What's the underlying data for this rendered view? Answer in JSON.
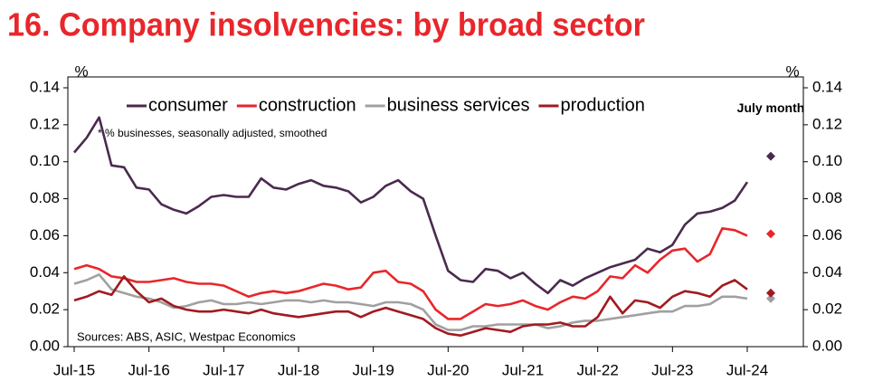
{
  "chart_data": {
    "type": "line",
    "title": "16. Company insolvencies: by broad sector",
    "ylabel": "%",
    "y2label": "%",
    "note": "* % businesses, seasonally adjusted, smoothed",
    "source": "Sources: ABS, ASIC, Westpac Economics",
    "annotation": "July month",
    "categories": [
      "Jul-15",
      null,
      null,
      null,
      null,
      null,
      "Jul-16",
      null,
      null,
      null,
      null,
      null,
      "Jul-17",
      null,
      null,
      null,
      null,
      null,
      "Jul-18",
      null,
      null,
      null,
      null,
      null,
      "Jul-19",
      null,
      null,
      null,
      null,
      null,
      "Jul-20",
      null,
      null,
      null,
      null,
      null,
      "Jul-21",
      null,
      null,
      null,
      null,
      null,
      "Jul-22",
      null,
      null,
      null,
      null,
      null,
      "Jul-23",
      null,
      null,
      null,
      null,
      null,
      "Jul-24"
    ],
    "ylim": [
      0,
      0.14
    ],
    "yticks": [
      {
        "value": 0,
        "label": "0.00"
      },
      {
        "value": 0.02,
        "label": "0.02"
      },
      {
        "value": 0.04,
        "label": "0.04"
      },
      {
        "value": 0.06,
        "label": "0.06"
      },
      {
        "value": 0.08,
        "label": "0.08"
      },
      {
        "value": 0.1,
        "label": "0.10"
      },
      {
        "value": 0.12,
        "label": "0.12"
      },
      {
        "value": 0.14,
        "label": "0.14"
      }
    ],
    "y2lim": [
      0,
      0.14
    ],
    "y2ticks": [
      {
        "value": 0,
        "label": "0.00"
      },
      {
        "value": 0.02,
        "label": "0.02"
      },
      {
        "value": 0.04,
        "label": "0.04"
      },
      {
        "value": 0.06,
        "label": "0.06"
      },
      {
        "value": 0.08,
        "label": "0.08"
      },
      {
        "value": 0.1,
        "label": "0.10"
      },
      {
        "value": 0.12,
        "label": "0.12"
      },
      {
        "value": 0.14,
        "label": "0.14"
      }
    ],
    "grid": false,
    "legend": "top",
    "series": [
      {
        "name": "consumer",
        "color": "#4b2a4f",
        "july_month": 0.103,
        "values": [
          0.105,
          0.113,
          0.124,
          0.098,
          0.097,
          0.086,
          0.085,
          0.077,
          0.074,
          0.072,
          0.076,
          0.081,
          0.082,
          0.081,
          0.081,
          0.091,
          0.086,
          0.085,
          0.088,
          0.09,
          0.087,
          0.086,
          0.084,
          0.078,
          0.081,
          0.087,
          0.09,
          0.084,
          0.08,
          0.06,
          0.041,
          0.036,
          0.035,
          0.042,
          0.041,
          0.037,
          0.04,
          0.034,
          0.029,
          0.036,
          0.033,
          0.037,
          0.04,
          0.043,
          0.045,
          0.047,
          0.053,
          0.051,
          0.055,
          0.066,
          0.072,
          0.073,
          0.075,
          0.079,
          0.089
        ]
      },
      {
        "name": "construction",
        "color": "#e8262b",
        "july_month": 0.061,
        "values": [
          0.042,
          0.044,
          0.042,
          0.038,
          0.037,
          0.035,
          0.035,
          0.036,
          0.037,
          0.035,
          0.034,
          0.034,
          0.033,
          0.03,
          0.027,
          0.029,
          0.03,
          0.029,
          0.03,
          0.032,
          0.034,
          0.033,
          0.031,
          0.032,
          0.04,
          0.041,
          0.035,
          0.034,
          0.03,
          0.02,
          0.015,
          0.015,
          0.019,
          0.023,
          0.022,
          0.023,
          0.025,
          0.022,
          0.02,
          0.024,
          0.027,
          0.026,
          0.03,
          0.038,
          0.037,
          0.044,
          0.04,
          0.047,
          0.052,
          0.053,
          0.046,
          0.05,
          0.064,
          0.063,
          0.06
        ]
      },
      {
        "name": "business services",
        "color": "#a0a0a0",
        "july_month": 0.026,
        "values": [
          0.034,
          0.036,
          0.039,
          0.031,
          0.029,
          0.027,
          0.026,
          0.024,
          0.021,
          0.022,
          0.024,
          0.025,
          0.023,
          0.023,
          0.024,
          0.023,
          0.024,
          0.025,
          0.025,
          0.024,
          0.025,
          0.024,
          0.024,
          0.023,
          0.022,
          0.024,
          0.024,
          0.023,
          0.02,
          0.012,
          0.009,
          0.009,
          0.011,
          0.011,
          0.012,
          0.012,
          0.012,
          0.012,
          0.01,
          0.011,
          0.013,
          0.014,
          0.014,
          0.015,
          0.016,
          0.017,
          0.018,
          0.019,
          0.019,
          0.022,
          0.022,
          0.023,
          0.027,
          0.027,
          0.026
        ]
      },
      {
        "name": "production",
        "color": "#a11a1f",
        "july_month": 0.029,
        "values": [
          0.025,
          0.027,
          0.03,
          0.028,
          0.038,
          0.03,
          0.024,
          0.026,
          0.022,
          0.02,
          0.019,
          0.019,
          0.02,
          0.019,
          0.018,
          0.02,
          0.018,
          0.017,
          0.016,
          0.017,
          0.018,
          0.019,
          0.019,
          0.016,
          0.019,
          0.021,
          0.019,
          0.017,
          0.015,
          0.01,
          0.007,
          0.006,
          0.008,
          0.01,
          0.009,
          0.008,
          0.011,
          0.012,
          0.012,
          0.013,
          0.011,
          0.011,
          0.016,
          0.027,
          0.018,
          0.025,
          0.024,
          0.021,
          0.027,
          0.03,
          0.029,
          0.027,
          0.033,
          0.036,
          0.031
        ]
      }
    ]
  }
}
